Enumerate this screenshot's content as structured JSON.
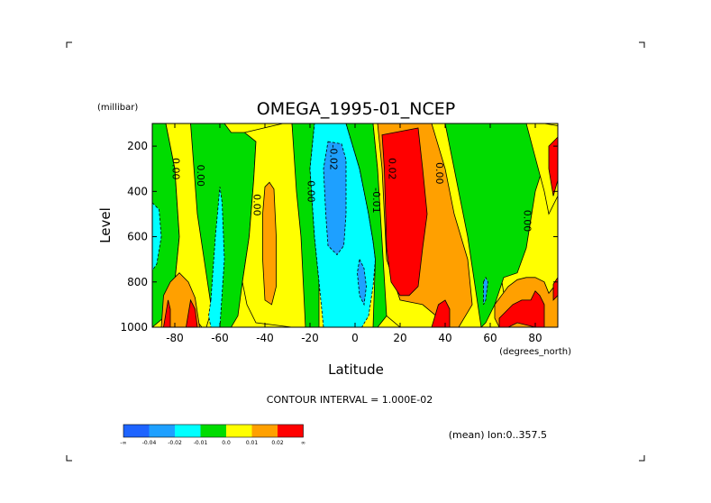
{
  "chart_data": {
    "type": "heatmap",
    "title": "OMEGA_1995-01_NCEP",
    "xlabel": "Latitude",
    "ylabel": "Level",
    "y_unit": "(millibar)",
    "x_unit": "(degrees_north)",
    "xlim": [
      -90,
      90
    ],
    "ylim": [
      1000,
      100
    ],
    "x_ticks": [
      "-80",
      "-60",
      "-40",
      "-20",
      "0",
      "20",
      "40",
      "60",
      "80"
    ],
    "y_ticks": [
      "200",
      "400",
      "600",
      "800",
      "1000"
    ],
    "x_tick_values": [
      -80,
      -60,
      -40,
      -20,
      0,
      20,
      40,
      60,
      80
    ],
    "y_tick_values": [
      200,
      400,
      600,
      800,
      1000
    ],
    "contour_interval_text": "CONTOUR INTERVAL = 1.000E-02",
    "mean_text": "(mean) lon:0..357.5",
    "contour_labels": [
      {
        "text": "0.00",
        "lat": -81,
        "lev": 300
      },
      {
        "text": "0.00",
        "lat": -70,
        "lev": 330
      },
      {
        "text": "0.00",
        "lat": -45,
        "lev": 460
      },
      {
        "text": "0.00",
        "lat": -21,
        "lev": 400
      },
      {
        "text": "-0.02",
        "lat": -11,
        "lev": 250
      },
      {
        "text": "-0.01",
        "lat": 8,
        "lev": 440
      },
      {
        "text": "0.02",
        "lat": 15,
        "lev": 300
      },
      {
        "text": "0.00",
        "lat": 36,
        "lev": 320
      },
      {
        "text": "0.00",
        "lat": 75,
        "lev": 530
      }
    ],
    "colorbar": {
      "labels": [
        "-∞",
        "-0.04",
        "-0.02",
        "-0.01",
        "0.0",
        "0.01",
        "0.02",
        "∞"
      ],
      "colors": [
        "#1e64ff",
        "#1ea0ff",
        "#00ffff",
        "#00dc00",
        "#ffff00",
        "#ffa000",
        "#ff0000"
      ]
    },
    "regions": [
      {
        "level": "green",
        "x": [
          -90,
          -84,
          -80,
          -78,
          -80,
          -84,
          -90
        ],
        "y": [
          100,
          100,
          300,
          600,
          800,
          950,
          1000
        ]
      },
      {
        "level": "cyan",
        "x": [
          -90,
          -87,
          -86,
          -88,
          -90
        ],
        "y": [
          450,
          480,
          600,
          720,
          750
        ]
      },
      {
        "level": "yellow",
        "x": [
          -84,
          -73,
          -70,
          -67,
          -64,
          -63,
          -66,
          -68,
          -72,
          -78,
          -80,
          -78,
          -80
        ],
        "y": [
          100,
          100,
          300,
          500,
          700,
          900,
          1000,
          1000,
          950,
          950,
          800,
          600,
          300
        ]
      },
      {
        "level": "orange",
        "x": [
          -85,
          -82,
          -78,
          -74,
          -71,
          -69,
          -68,
          -74,
          -78,
          -81,
          -86
        ],
        "y": [
          860,
          800,
          760,
          800,
          870,
          1000,
          1000,
          1000,
          1000,
          1000,
          1000
        ]
      },
      {
        "level": "red",
        "x": [
          -85,
          -83,
          -82,
          -82,
          -85
        ],
        "y": [
          1000,
          880,
          920,
          1000,
          1000
        ]
      },
      {
        "level": "red",
        "x": [
          -75,
          -73,
          -71,
          -70,
          -75
        ],
        "y": [
          1000,
          880,
          920,
          1000,
          1000
        ]
      },
      {
        "level": "green",
        "x": [
          -73,
          -58,
          -55,
          -49,
          -44,
          -45,
          -47,
          -50,
          -52,
          -55,
          -60,
          -64,
          -67,
          -70
        ],
        "y": [
          100,
          100,
          140,
          140,
          180,
          350,
          600,
          800,
          950,
          1000,
          1000,
          900,
          700,
          500
        ]
      },
      {
        "level": "cyan",
        "x": [
          -64,
          -62,
          -60,
          -59,
          -58,
          -60,
          -64,
          -65
        ],
        "y": [
          880,
          600,
          380,
          450,
          700,
          1000,
          1000,
          950
        ]
      },
      {
        "level": "yellow",
        "x": [
          -49,
          -32,
          -28,
          -26,
          -24,
          -22,
          -22,
          -28,
          -36,
          -44,
          -48,
          -50,
          -47,
          -45,
          -44
        ],
        "y": [
          140,
          100,
          100,
          300,
          500,
          600,
          1000,
          1000,
          990,
          980,
          900,
          800,
          600,
          350,
          180
        ]
      },
      {
        "level": "orange",
        "x": [
          -40,
          -38,
          -36,
          -35,
          -35,
          -37,
          -40,
          -41,
          -41
        ],
        "y": [
          380,
          360,
          390,
          600,
          820,
          900,
          880,
          700,
          500
        ]
      },
      {
        "level": "green",
        "x": [
          -32,
          -18,
          -20,
          -18,
          -16,
          -16,
          -22,
          -24,
          -26,
          -28
        ],
        "y": [
          100,
          100,
          300,
          600,
          800,
          1000,
          1000,
          600,
          400,
          100
        ]
      },
      {
        "level": "cyan",
        "x": [
          -18,
          -4,
          2,
          6,
          8,
          9,
          8,
          6,
          3,
          -6,
          -14,
          -16,
          -18,
          -20,
          -18
        ],
        "y": [
          100,
          100,
          300,
          500,
          620,
          700,
          820,
          950,
          1000,
          1000,
          1000,
          800,
          600,
          300,
          100
        ]
      },
      {
        "level": "sky",
        "x": [
          -12,
          -6,
          -4,
          -4,
          -5,
          -8,
          -12,
          -13,
          -14
        ],
        "y": [
          180,
          190,
          260,
          500,
          640,
          680,
          640,
          500,
          300
        ]
      },
      {
        "level": "sky",
        "x": [
          2,
          4,
          5,
          4,
          2,
          1
        ],
        "y": [
          700,
          740,
          820,
          900,
          860,
          760
        ]
      },
      {
        "level": "green",
        "x": [
          -4,
          8,
          10,
          12,
          16,
          18,
          14,
          10,
          8,
          9,
          8,
          6,
          2,
          -4
        ],
        "y": [
          100,
          100,
          300,
          500,
          700,
          850,
          950,
          1000,
          1000,
          700,
          620,
          500,
          300,
          100
        ]
      },
      {
        "level": "yellow",
        "x": [
          8,
          40,
          50,
          56,
          62,
          66,
          64,
          56,
          48,
          40,
          30,
          20,
          14,
          10
        ],
        "y": [
          100,
          100,
          250,
          400,
          600,
          850,
          1000,
          1000,
          1000,
          1000,
          1000,
          1000,
          950,
          300
        ]
      },
      {
        "level": "orange",
        "x": [
          10,
          34,
          40,
          44,
          50,
          52,
          46,
          40,
          36,
          30,
          20,
          18,
          14,
          12
        ],
        "y": [
          100,
          100,
          300,
          500,
          700,
          900,
          1000,
          1000,
          950,
          900,
          880,
          820,
          700,
          300
        ]
      },
      {
        "level": "red",
        "x": [
          12,
          28,
          30,
          32,
          30,
          28,
          24,
          20,
          16,
          14,
          13
        ],
        "y": [
          150,
          120,
          300,
          500,
          650,
          820,
          860,
          860,
          800,
          650,
          300
        ]
      },
      {
        "level": "red",
        "x": [
          34,
          37,
          40,
          42,
          42,
          34
        ],
        "y": [
          1000,
          900,
          880,
          920,
          1000,
          1000
        ]
      },
      {
        "level": "green",
        "x": [
          40,
          80,
          88,
          80,
          76,
          72,
          66,
          62,
          58,
          56,
          50
        ],
        "y": [
          100,
          100,
          150,
          400,
          650,
          760,
          780,
          900,
          980,
          1000,
          600
        ]
      },
      {
        "level": "yellow",
        "x": [
          76,
          84,
          90,
          90,
          86,
          84,
          80
        ],
        "y": [
          100,
          100,
          110,
          420,
          500,
          400,
          250
        ]
      },
      {
        "level": "sky",
        "x": [
          57,
          58,
          59,
          58,
          57
        ],
        "y": [
          800,
          780,
          800,
          880,
          900
        ]
      },
      {
        "level": "orange",
        "x": [
          62,
          68,
          72,
          76,
          80,
          84,
          86,
          90,
          90,
          80,
          70,
          64,
          62
        ],
        "y": [
          900,
          820,
          790,
          780,
          780,
          800,
          850,
          800,
          1000,
          1000,
          1000,
          1000,
          960
        ]
      },
      {
        "level": "red",
        "x": [
          64,
          70,
          74,
          78,
          80,
          82,
          84,
          84,
          80,
          76,
          72,
          68,
          64
        ],
        "y": [
          960,
          900,
          880,
          880,
          840,
          860,
          900,
          1000,
          1000,
          990,
          980,
          1000,
          1000
        ]
      },
      {
        "level": "red",
        "x": [
          86,
          88,
          90,
          90,
          88,
          86
        ],
        "y": [
          200,
          180,
          160,
          350,
          420,
          300
        ]
      },
      {
        "level": "red",
        "x": [
          88,
          90,
          90,
          88
        ],
        "y": [
          810,
          780,
          860,
          880
        ]
      }
    ]
  }
}
